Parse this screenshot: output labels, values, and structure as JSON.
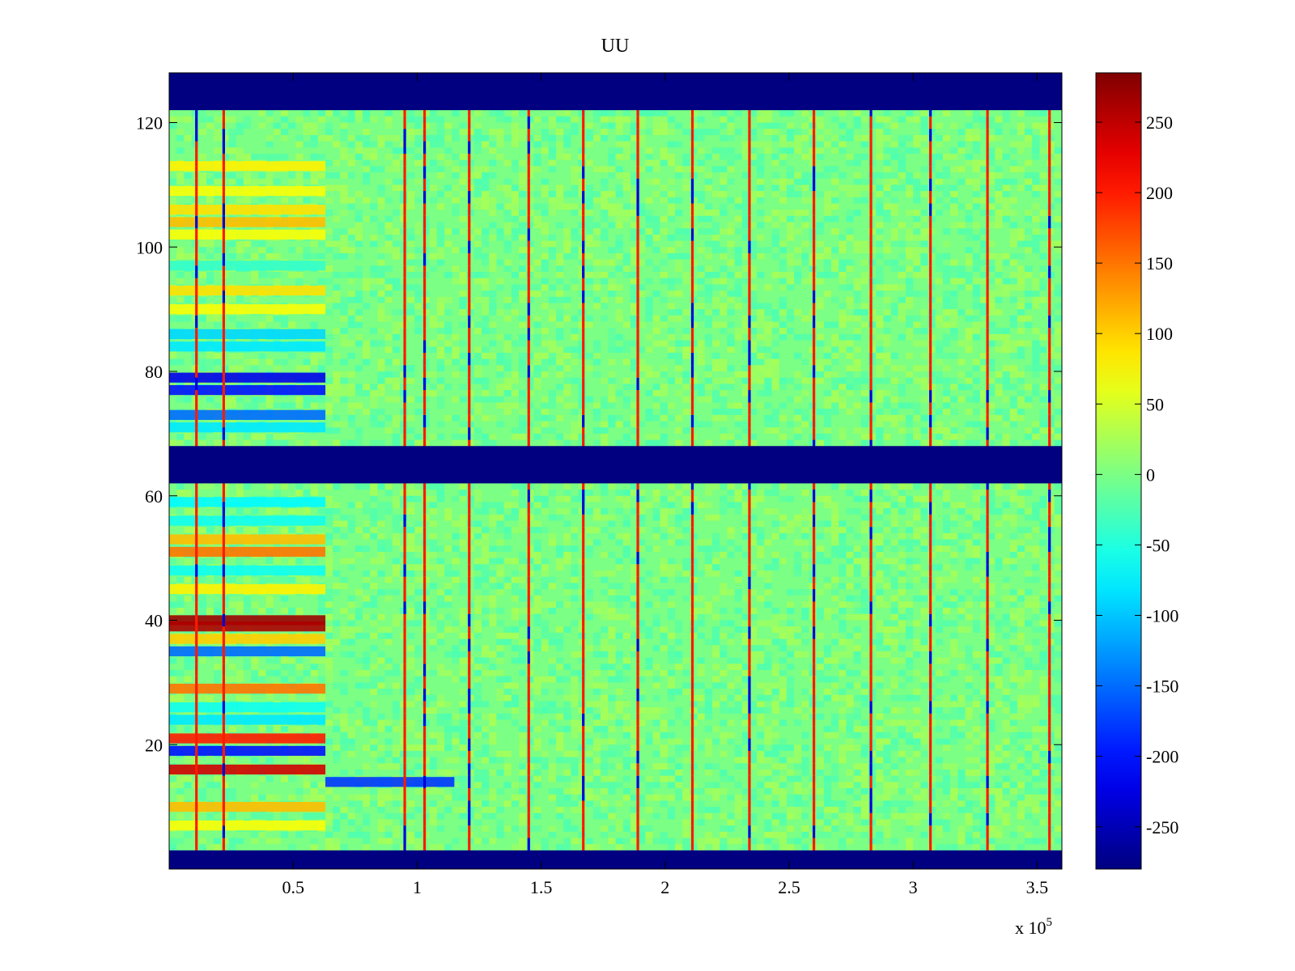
{
  "chart_data": {
    "type": "heatmap",
    "title": "UU",
    "xlabel": "",
    "ylabel": "",
    "x_multiplier": "x 10",
    "x_multiplier_exponent": "5",
    "xlim": [
      0,
      3.6
    ],
    "ylim": [
      0,
      128
    ],
    "x_ticks": [
      {
        "value": 0.5,
        "label": "0.5"
      },
      {
        "value": 1,
        "label": "1"
      },
      {
        "value": 1.5,
        "label": "1.5"
      },
      {
        "value": 2,
        "label": "2"
      },
      {
        "value": 2.5,
        "label": "2.5"
      },
      {
        "value": 3,
        "label": "3"
      },
      {
        "value": 3.5,
        "label": "3.5"
      }
    ],
    "y_ticks": [
      {
        "value": 20,
        "label": "20"
      },
      {
        "value": 40,
        "label": "40"
      },
      {
        "value": 60,
        "label": "60"
      },
      {
        "value": 80,
        "label": "80"
      },
      {
        "value": 100,
        "label": "100"
      },
      {
        "value": 120,
        "label": "120"
      }
    ],
    "colormap": "jet",
    "color_limits": [
      -280,
      285
    ],
    "colorbar_ticks": [
      {
        "value": 250,
        "label": "250"
      },
      {
        "value": 200,
        "label": "200"
      },
      {
        "value": 150,
        "label": "150"
      },
      {
        "value": 100,
        "label": "100"
      },
      {
        "value": 50,
        "label": "50"
      },
      {
        "value": 0,
        "label": "0"
      },
      {
        "value": -50,
        "label": "-50"
      },
      {
        "value": -100,
        "label": "-100"
      },
      {
        "value": -150,
        "label": "-150"
      },
      {
        "value": -200,
        "label": "-200"
      },
      {
        "value": -250,
        "label": "-250"
      }
    ],
    "background_value": 0,
    "masked_rows": [
      {
        "y_range": [
          0,
          3
        ],
        "value": -280
      },
      {
        "y_range": [
          62,
          68
        ],
        "value": -280
      },
      {
        "y_range": [
          122,
          128
        ],
        "value": -280
      }
    ],
    "vertical_streaks_x": [
      0.11,
      0.22,
      0.95,
      1.03,
      1.21,
      1.45,
      1.67,
      1.89,
      2.11,
      2.34,
      2.6,
      2.83,
      3.07,
      3.3,
      3.55
    ],
    "horizontal_bands": [
      {
        "y": 113,
        "x_range": [
          0,
          0.63
        ],
        "value": 80
      },
      {
        "y": 109,
        "x_range": [
          0,
          0.63
        ],
        "value": 70
      },
      {
        "y": 106,
        "x_range": [
          0,
          0.63
        ],
        "value": 90
      },
      {
        "y": 104,
        "x_range": [
          0,
          0.63
        ],
        "value": 110
      },
      {
        "y": 102,
        "x_range": [
          0,
          0.63
        ],
        "value": 70
      },
      {
        "y": 97,
        "x_range": [
          0,
          0.63
        ],
        "value": -40
      },
      {
        "y": 93,
        "x_range": [
          0,
          0.63
        ],
        "value": 90
      },
      {
        "y": 90,
        "x_range": [
          0,
          0.63
        ],
        "value": 70
      },
      {
        "y": 86,
        "x_range": [
          0,
          0.63
        ],
        "value": -90
      },
      {
        "y": 84,
        "x_range": [
          0,
          0.63
        ],
        "value": -80
      },
      {
        "y": 79,
        "x_range": [
          0,
          0.63
        ],
        "value": -220
      },
      {
        "y": 77,
        "x_range": [
          0,
          0.63
        ],
        "value": -200
      },
      {
        "y": 73,
        "x_range": [
          0,
          0.63
        ],
        "value": -150
      },
      {
        "y": 71,
        "x_range": [
          0,
          0.63
        ],
        "value": -80
      },
      {
        "y": 59,
        "x_range": [
          0,
          0.63
        ],
        "value": -70
      },
      {
        "y": 56,
        "x_range": [
          0,
          0.63
        ],
        "value": -60
      },
      {
        "y": 53,
        "x_range": [
          0,
          0.63
        ],
        "value": 110
      },
      {
        "y": 51,
        "x_range": [
          0,
          0.63
        ],
        "value": 150
      },
      {
        "y": 48,
        "x_range": [
          0,
          0.63
        ],
        "value": -60
      },
      {
        "y": 45,
        "x_range": [
          0,
          0.63
        ],
        "value": 80
      },
      {
        "y": 40,
        "x_range": [
          0,
          0.63
        ],
        "value": 270
      },
      {
        "y": 39,
        "x_range": [
          0,
          0.63
        ],
        "value": 260
      },
      {
        "y": 37,
        "x_range": [
          0,
          0.63
        ],
        "value": 100
      },
      {
        "y": 35,
        "x_range": [
          0,
          0.63
        ],
        "value": -150
      },
      {
        "y": 29,
        "x_range": [
          0,
          0.63
        ],
        "value": 150
      },
      {
        "y": 26,
        "x_range": [
          0,
          0.63
        ],
        "value": -60
      },
      {
        "y": 24,
        "x_range": [
          0,
          0.63
        ],
        "value": -80
      },
      {
        "y": 21,
        "x_range": [
          0,
          0.63
        ],
        "value": 200
      },
      {
        "y": 19,
        "x_range": [
          0,
          0.63
        ],
        "value": -200
      },
      {
        "y": 16,
        "x_range": [
          0,
          0.63
        ],
        "value": 240
      },
      {
        "y": 14,
        "x_range": [
          0.63,
          1.15
        ],
        "value": -180
      },
      {
        "y": 10,
        "x_range": [
          0,
          0.63
        ],
        "value": 110
      },
      {
        "y": 7,
        "x_range": [
          0,
          0.63
        ],
        "value": 70
      }
    ]
  }
}
